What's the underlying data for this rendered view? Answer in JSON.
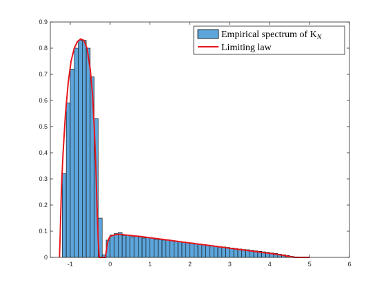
{
  "chart_data": {
    "type": "bar",
    "colors": {
      "bar_fill": "#5DA5DA",
      "bar_stroke": "#000000",
      "curve": "#E8161B",
      "axes": "#262626"
    },
    "xlim": [
      -1.5,
      6
    ],
    "ylim": [
      0,
      0.9
    ],
    "x_ticks": [
      -1,
      0,
      1,
      2,
      3,
      4,
      5,
      6
    ],
    "y_ticks": [
      0,
      0.1,
      0.2,
      0.3,
      0.4,
      0.5,
      0.6,
      0.7,
      0.8,
      0.9
    ],
    "x_tick_labels": [
      "-1",
      "0",
      "1",
      "2",
      "3",
      "4",
      "5",
      "6"
    ],
    "y_tick_labels": [
      "0",
      "0.1",
      "0.2",
      "0.3",
      "0.4",
      "0.5",
      "0.6",
      "0.7",
      "0.8",
      "0.9"
    ],
    "grid": false,
    "legend": {
      "placement": "top-right",
      "histogram_label": "Empirical spectrum of K",
      "histogram_label_subscript": "N",
      "curve_label": "Limiting law"
    },
    "histogram": {
      "bin_width": 0.1,
      "bins": [
        {
          "x": -1.2,
          "value": 0.32
        },
        {
          "x": -1.1,
          "value": 0.59
        },
        {
          "x": -1.0,
          "value": 0.72
        },
        {
          "x": -0.9,
          "value": 0.8
        },
        {
          "x": -0.8,
          "value": 0.83
        },
        {
          "x": -0.7,
          "value": 0.83
        },
        {
          "x": -0.6,
          "value": 0.8
        },
        {
          "x": -0.5,
          "value": 0.69
        },
        {
          "x": -0.4,
          "value": 0.53
        },
        {
          "x": -0.3,
          "value": 0.15
        },
        {
          "x": -0.2,
          "value": 0.01
        },
        {
          "x": -0.1,
          "value": 0.066
        },
        {
          "x": 0.0,
          "value": 0.086
        },
        {
          "x": 0.1,
          "value": 0.091
        },
        {
          "x": 0.2,
          "value": 0.095
        },
        {
          "x": 0.3,
          "value": 0.084
        },
        {
          "x": 0.4,
          "value": 0.086
        },
        {
          "x": 0.5,
          "value": 0.079
        },
        {
          "x": 0.6,
          "value": 0.081
        },
        {
          "x": 0.7,
          "value": 0.078
        },
        {
          "x": 0.8,
          "value": 0.074
        },
        {
          "x": 0.9,
          "value": 0.075
        },
        {
          "x": 1.0,
          "value": 0.073
        },
        {
          "x": 1.1,
          "value": 0.069
        },
        {
          "x": 1.2,
          "value": 0.068
        },
        {
          "x": 1.3,
          "value": 0.066
        },
        {
          "x": 1.4,
          "value": 0.067
        },
        {
          "x": 1.5,
          "value": 0.063
        },
        {
          "x": 1.6,
          "value": 0.061
        },
        {
          "x": 1.7,
          "value": 0.059
        },
        {
          "x": 1.8,
          "value": 0.058
        },
        {
          "x": 1.9,
          "value": 0.056
        },
        {
          "x": 2.0,
          "value": 0.055
        },
        {
          "x": 2.1,
          "value": 0.052
        },
        {
          "x": 2.2,
          "value": 0.051
        },
        {
          "x": 2.3,
          "value": 0.049
        },
        {
          "x": 2.4,
          "value": 0.047
        },
        {
          "x": 2.5,
          "value": 0.045
        },
        {
          "x": 2.6,
          "value": 0.043
        },
        {
          "x": 2.7,
          "value": 0.041
        },
        {
          "x": 2.8,
          "value": 0.04
        },
        {
          "x": 2.9,
          "value": 0.038
        },
        {
          "x": 3.0,
          "value": 0.036
        },
        {
          "x": 3.1,
          "value": 0.034
        },
        {
          "x": 3.2,
          "value": 0.032
        },
        {
          "x": 3.3,
          "value": 0.03
        },
        {
          "x": 3.4,
          "value": 0.029
        },
        {
          "x": 3.5,
          "value": 0.027
        },
        {
          "x": 3.6,
          "value": 0.025
        },
        {
          "x": 3.7,
          "value": 0.023
        },
        {
          "x": 3.8,
          "value": 0.021
        },
        {
          "x": 3.9,
          "value": 0.019
        },
        {
          "x": 4.0,
          "value": 0.017
        },
        {
          "x": 4.1,
          "value": 0.015
        },
        {
          "x": 4.2,
          "value": 0.012
        },
        {
          "x": 4.3,
          "value": 0.01
        },
        {
          "x": 4.4,
          "value": 0.007
        },
        {
          "x": 4.5,
          "value": 0.004
        },
        {
          "x": 4.6,
          "value": 0.002
        }
      ]
    },
    "curve": {
      "points": [
        [
          -1.27,
          0.0
        ],
        [
          -1.25,
          0.1
        ],
        [
          -1.22,
          0.27
        ],
        [
          -1.18,
          0.4
        ],
        [
          -1.12,
          0.55
        ],
        [
          -1.05,
          0.67
        ],
        [
          -0.98,
          0.75
        ],
        [
          -0.9,
          0.8
        ],
        [
          -0.82,
          0.825
        ],
        [
          -0.74,
          0.835
        ],
        [
          -0.66,
          0.83
        ],
        [
          -0.58,
          0.8
        ],
        [
          -0.5,
          0.72
        ],
        [
          -0.44,
          0.62
        ],
        [
          -0.4,
          0.5
        ],
        [
          -0.36,
          0.35
        ],
        [
          -0.33,
          0.2
        ],
        [
          -0.3,
          0.07
        ],
        [
          -0.28,
          0.01
        ],
        [
          -0.27,
          0.0
        ],
        [
          -0.12,
          0.0
        ],
        [
          -0.1,
          0.02
        ],
        [
          -0.07,
          0.055
        ],
        [
          -0.03,
          0.072
        ],
        [
          0.0,
          0.08
        ],
        [
          0.1,
          0.086
        ],
        [
          0.2,
          0.088
        ],
        [
          0.3,
          0.087
        ],
        [
          0.5,
          0.084
        ],
        [
          0.75,
          0.08
        ],
        [
          1.0,
          0.075
        ],
        [
          1.25,
          0.07
        ],
        [
          1.5,
          0.065
        ],
        [
          1.75,
          0.06
        ],
        [
          2.0,
          0.055
        ],
        [
          2.25,
          0.05
        ],
        [
          2.5,
          0.045
        ],
        [
          2.75,
          0.04
        ],
        [
          3.0,
          0.035
        ],
        [
          3.25,
          0.03
        ],
        [
          3.5,
          0.025
        ],
        [
          3.75,
          0.02
        ],
        [
          4.0,
          0.015
        ],
        [
          4.2,
          0.011
        ],
        [
          4.4,
          0.006
        ],
        [
          4.55,
          0.002
        ],
        [
          4.62,
          0.0
        ],
        [
          5.0,
          0.0
        ]
      ]
    }
  }
}
